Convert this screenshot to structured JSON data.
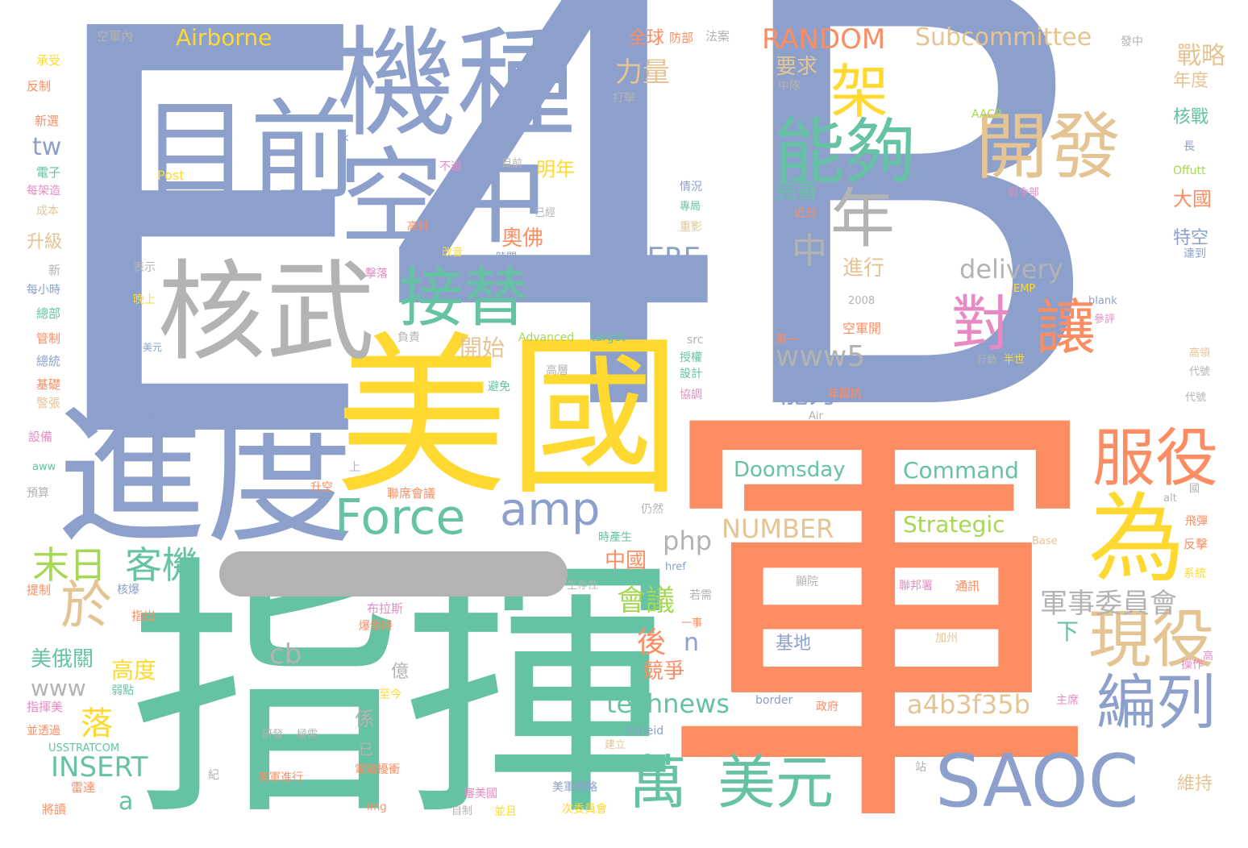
{
  "palette": {
    "blue": "#8DA0CB",
    "orange": "#FC8D62",
    "teal": "#66C2A5",
    "yellow": "#FFD92F",
    "tan": "#E5C494",
    "grey": "#B3B3B3",
    "pink": "#E78AC3",
    "green": "#A6D854"
  },
  "words": {
    "e": "E",
    "four_b": "4B",
    "jun": "軍",
    "zhihui": "指揮",
    "meiguo": "美國",
    "jindu": "進度",
    "jizhong": "機種",
    "kongzhong": "空中",
    "muqian": "目前",
    "hewu": "核武",
    "jietie": "接替",
    "nenggou": "能夠",
    "jia": "架",
    "kaifa": "開發",
    "nian": "年",
    "zhong_small": "中",
    "dui": "對",
    "rang": "讓",
    "wei": "為",
    "fuyi": "服役",
    "xianyi": "現役",
    "bianlie": "編列",
    "wan": "萬",
    "meiyuan": "美元",
    "saoc": "SAOC",
    "force": "Force",
    "amp": "amp",
    "yu": "於",
    "mori": "末日",
    "keji": "客機",
    "random": "RANDOM",
    "subcommittee": "Subcommittee",
    "airborne": "Airborne",
    "doomsday": "Doomsday",
    "command": "Command",
    "strategic": "Strategic",
    "number": "NUMBER",
    "delivery": "delivery",
    "www5": "www5",
    "here": "HERE",
    "php": "php",
    "technews": "technews",
    "a4b3f35b": "a4b3f35b",
    "insert": "INSERT",
    "cb": "cb",
    "www": "www",
    "tw": "tw",
    "a": "a",
    "n": "n",
    "junshiweiyuanhui": "軍事委員會",
    "huiyi": "會議",
    "zhongguo": "中國",
    "nengli": "能力",
    "liliang": "力量",
    "zhanlue": "戰略",
    "aofo": "奧佛",
    "mingnian": "明年",
    "kaishi": "開始",
    "jinxing": "進行",
    "wanshan": "完善",
    "yaoqiu": "要求",
    "quanqiu": "全球",
    "hou": "後",
    "jingzheng": "競爭",
    "gaodu": "高度",
    "luo": "落",
    "meieguan": "美俄關",
    "xia": "下",
    "daguo": "大國",
    "niandu": "年度",
    "hezhan": "核戰",
    "tekong": "特空",
    "sheng_ji": "升級",
    "jidi": "基地",
    "post": "Post",
    "aacp": "AACP",
    "offutt": "Offutt",
    "emp": "EMP",
    "blank": "blank",
    "advanced": "Advanced",
    "target": "target",
    "src": "src",
    "border": "border",
    "zoneid": "zoneid",
    "href": "href",
    "base": "Base",
    "air": "Air",
    "alt": "alt",
    "img": "img",
    "awa": "aww",
    "usstratcom": "USSTRATCOM",
    "ck": "ck",
    "y2008": "2008",
    "kongjunnei": "空軍內",
    "fangbu": "防部",
    "faan": "法案",
    "fazhong": "發中",
    "chengshou": "承受",
    "fanzhi": "反制",
    "xinxuan": "新選",
    "dianzi": "電子",
    "meijiazao": "每架造",
    "chengben": "成本",
    "xin": "新",
    "meixiaoshi": "每小時",
    "zongbu": "總部",
    "guanzhi": "管制",
    "zongtong": "總統",
    "jichu": "基礎",
    "jingzhang": "警張",
    "shebei": "設備",
    "yusuan": "預算",
    "tizhi": "提制",
    "dahui": "搭載",
    "zhihuimei": "指揮美",
    "bingjingguo": "並透過",
    "leicha": "雷達",
    "jiangjiu": "將讀",
    "liangyu": "兩預",
    "bu_guo": "不過",
    "muqian2": "目前",
    "yijing": "已經",
    "gaoshe": "高射",
    "gaiji": "改進",
    "zhongdui": "中隊",
    "daji": "打擊",
    "qingkuang": "情況",
    "zhuanju": "專局",
    "zhongying": "重影",
    "jinri": "近日",
    "biaoshi": "表示",
    "jiluo": "擊落",
    "wanshang": "晚上",
    "shijian": "時間",
    "gaiyin": "改音",
    "fuze": "負責",
    "meiyuan_s": "美元",
    "diyi": "第一",
    "kongjunkai": "空軍開",
    "zhongxin": "中心",
    "canping": "參評",
    "xingdong": "行動",
    "banshi": "半世",
    "sheji": "設計",
    "shouquan": "授權",
    "xietiao": "協調",
    "niandufang": "年國防",
    "gaoceng": "高層",
    "bimian": "避免",
    "shengkong": "升空",
    "lianxihuiyi": "聯席會議",
    "rengran": "仍然",
    "shichansheng": "時產生",
    "shengcunxing": "生存性",
    "ruoxu": "若需",
    "heba": "核爆",
    "zhichu": "指出",
    "bulasi": "布拉斯",
    "baofashi": "爆發時",
    "yishi": "一事",
    "yi": "億",
    "xi": "係",
    "zhijin": "至今",
    "ruodian": "弱點",
    "yanfa": "研發",
    "jixu": "極需",
    "yi2": "已",
    "dianciganrao": "電磁擾衝",
    "meijunjinxing": "美軍進行",
    "meijunzhanlue": "美軍戰略",
    "mingwei": "代號",
    "lianbangshu": "聯邦署",
    "tongxun": "通訊",
    "jiazhou": "加州",
    "zhengfu": "政府",
    "zhuxi": "主席",
    "caozuo": "操作",
    "gao": "高",
    "weichi": "維持",
    "daodan": "飛彈",
    "fanji": "反擊",
    "xitong": "系統",
    "gaoxiao": "高領",
    "siling": "司令部",
    "chang": "長",
    "dadao": "達到",
    "guo": "國",
    "ciweiyuanhui": "次委員會",
    "bingqie": "並且",
    "zizhi": "自制",
    "shenmeiguo": "審美國",
    "xuan": "旋",
    "guanyuan": "顯院",
    "zhan": "站",
    "shang": "上",
    "daizi": "代號",
    "ji": "紀",
    "jianli": "建立"
  }
}
